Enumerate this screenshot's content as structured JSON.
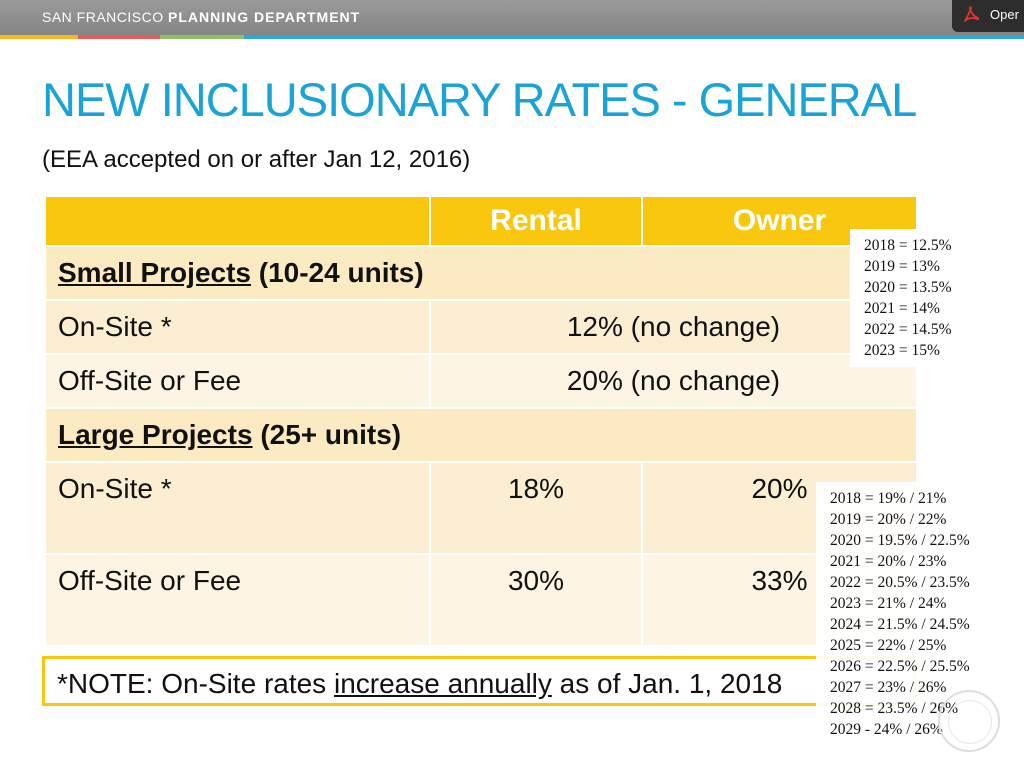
{
  "header": {
    "brand_light": "SAN FRANCISCO",
    "brand_bold": "PLANNING DEPARTMENT",
    "open_label": "Oper",
    "colors": {
      "bar": "#8e8e8e",
      "strip": [
        "#f5b81f",
        "#e25d5d",
        "#8dc067",
        "#2aa8d8"
      ]
    }
  },
  "slide": {
    "title": "NEW INCLUSIONARY RATES - GENERAL",
    "subtitle": "(EEA accepted on or after Jan 12, 2016)",
    "accent_color": "#1aa3d6",
    "table_header_color": "#f9c80e"
  },
  "table": {
    "columns": [
      "",
      "Rental",
      "Owner"
    ],
    "small_projects": {
      "label": "Small Projects",
      "range": "(10-24 units)",
      "onsite_label": "On-Site *",
      "onsite_value": "12% (no change)",
      "offsite_label": "Off-Site or Fee",
      "offsite_value": "20% (no change)"
    },
    "large_projects": {
      "label": "Large Projects",
      "range": "(25+ units)",
      "onsite_label": "On-Site *",
      "onsite_rental": "18%",
      "onsite_owner": "20%",
      "offsite_label": "Off-Site or Fee",
      "offsite_rental": "30%",
      "offsite_owner": "33%"
    }
  },
  "note": {
    "prefix": "*NOTE: On-Site rates ",
    "underlined": "increase annually",
    "suffix": " as of Jan. 1, 2018"
  },
  "overlays": {
    "small_onsite_schedule": [
      "2018 = 12.5%",
      "2019 = 13%",
      "2020 = 13.5%",
      "2021 = 14%",
      "2022 = 14.5%",
      "2023 = 15%"
    ],
    "large_onsite_schedule": [
      "2018 = 19% / 21%",
      "2019 = 20% / 22%",
      "2020 = 19.5% / 22.5%",
      "2021 = 20% / 23%",
      "2022 = 20.5% / 23.5%",
      "2023 = 21% / 24%",
      "2024 = 21.5% / 24.5%",
      "2025 = 22% / 25%",
      "2026 = 22.5% / 25.5%",
      "2027 = 23% / 26%",
      "2028 = 23.5% / 26%",
      "2029 - 24% / 26%"
    ]
  }
}
